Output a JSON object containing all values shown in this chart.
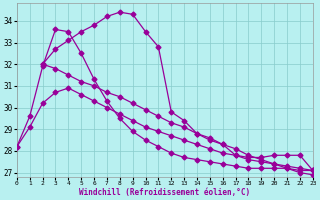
{
  "background_color": "#b8f0f0",
  "grid_color": "#88cccc",
  "line_color": "#990099",
  "marker": "D",
  "marker_size": 2.5,
  "linewidth": 0.9,
  "xlabel": "Windchill (Refroidissement éolien,°C)",
  "xlabel_color": "#990099",
  "xmin": 0,
  "xmax": 23,
  "ymin": 26.8,
  "ymax": 34.8,
  "yticks": [
    27,
    28,
    29,
    30,
    31,
    32,
    33,
    34
  ],
  "xticks": [
    0,
    1,
    2,
    3,
    4,
    5,
    6,
    7,
    8,
    9,
    10,
    11,
    12,
    13,
    14,
    15,
    16,
    17,
    18,
    19,
    20,
    21,
    22,
    23
  ],
  "series": [
    {
      "x": [
        0,
        1,
        2,
        3,
        4,
        5,
        6,
        7,
        8,
        9,
        10,
        11,
        12,
        13,
        14,
        15,
        16,
        17,
        18,
        19,
        20,
        21,
        22,
        23
      ],
      "y": [
        28.2,
        29.6,
        31.9,
        33.6,
        33.5,
        32.5,
        31.3,
        30.3,
        29.5,
        28.9,
        28.5,
        28.2,
        27.9,
        27.7,
        27.6,
        27.5,
        27.4,
        27.3,
        27.2,
        27.2,
        27.2,
        27.2,
        27.1,
        27.1
      ]
    },
    {
      "x": [
        2,
        3,
        4,
        5,
        6,
        7,
        8,
        9,
        10,
        11,
        12,
        13,
        14,
        15,
        16,
        17,
        18,
        19,
        20,
        21,
        22,
        23
      ],
      "y": [
        32.0,
        32.7,
        33.1,
        33.5,
        33.8,
        34.2,
        34.4,
        34.3,
        33.5,
        32.8,
        29.8,
        29.4,
        28.8,
        28.5,
        28.3,
        27.8,
        27.7,
        27.7,
        27.8,
        27.8,
        27.8,
        27.1
      ]
    },
    {
      "x": [
        2,
        3,
        4,
        5,
        6,
        7,
        8,
        9,
        10,
        11,
        12,
        13,
        14,
        15,
        16,
        17,
        18,
        19,
        20,
        21,
        22,
        23
      ],
      "y": [
        32.0,
        31.8,
        31.5,
        31.2,
        31.0,
        30.7,
        30.5,
        30.2,
        29.9,
        29.6,
        29.3,
        29.1,
        28.8,
        28.6,
        28.3,
        28.1,
        27.8,
        27.6,
        27.4,
        27.2,
        27.0,
        26.9
      ]
    },
    {
      "x": [
        0,
        1,
        2,
        3,
        4,
        5,
        6,
        7,
        8,
        9,
        10,
        11,
        12,
        13,
        14,
        15,
        16,
        17,
        18,
        19,
        20,
        21,
        22,
        23
      ],
      "y": [
        28.2,
        29.1,
        30.2,
        30.7,
        30.9,
        30.6,
        30.3,
        30.0,
        29.7,
        29.4,
        29.1,
        28.9,
        28.7,
        28.5,
        28.3,
        28.1,
        27.9,
        27.8,
        27.6,
        27.5,
        27.4,
        27.3,
        27.2,
        27.1
      ]
    }
  ]
}
